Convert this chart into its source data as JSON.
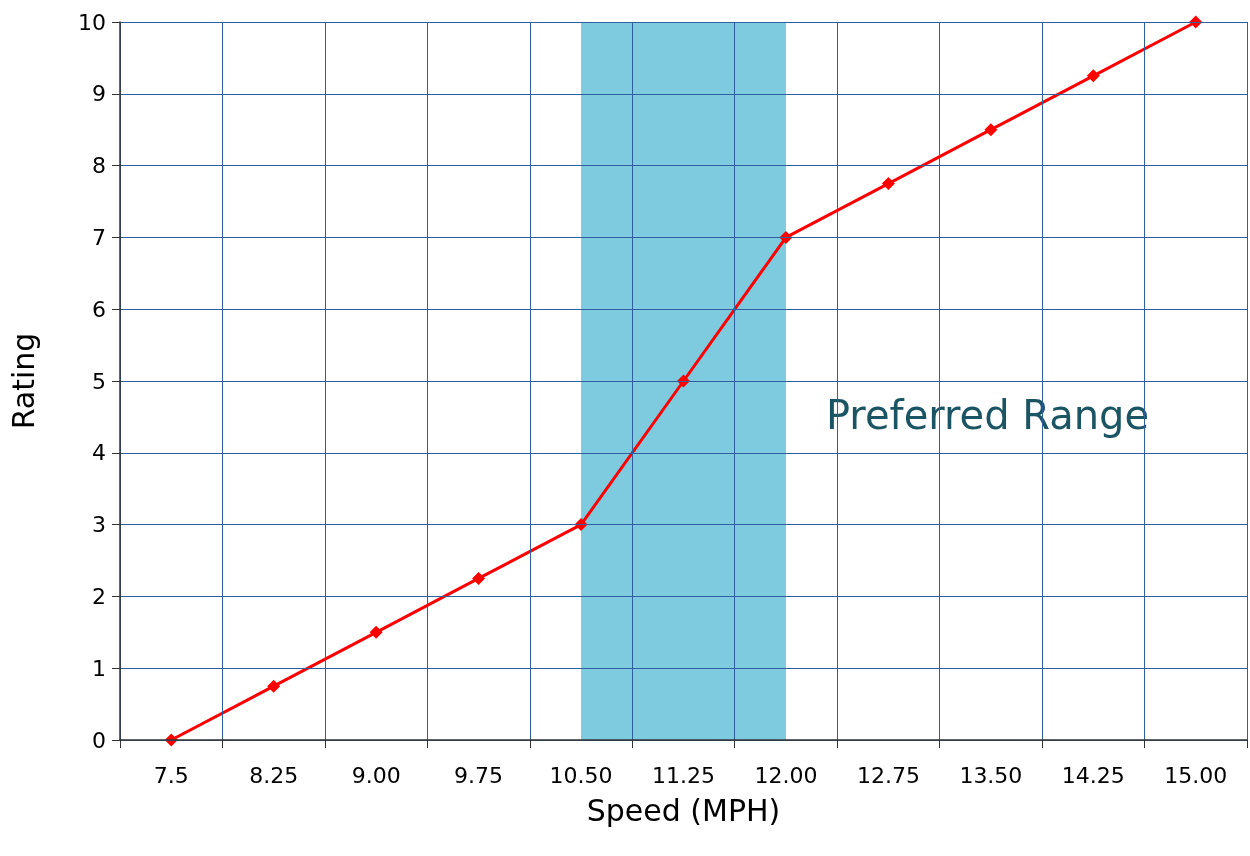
{
  "chart_data": {
    "type": "line",
    "xlabel": "Speed (MPH)",
    "ylabel": "Rating",
    "categories": [
      "7.5",
      "8.25",
      "9.00",
      "9.75",
      "10.50",
      "11.25",
      "12.00",
      "12.75",
      "13.50",
      "14.25",
      "15.00"
    ],
    "series": [
      {
        "color": "#ff0000",
        "values": [
          0,
          0.75,
          1.5,
          2.25,
          3,
          5,
          7,
          7.75,
          8.5,
          9.25,
          10
        ]
      }
    ],
    "ylim": [
      0,
      10
    ],
    "yticks": [
      0,
      1,
      2,
      3,
      4,
      5,
      6,
      7,
      8,
      9,
      10
    ],
    "bands": [
      {
        "axis": "x",
        "from": "10.50",
        "to": "12.00",
        "label": "Preferred Range",
        "color": "#7ecbe0"
      }
    ],
    "grid": true,
    "marker": "diamond",
    "line_style": "solid"
  }
}
